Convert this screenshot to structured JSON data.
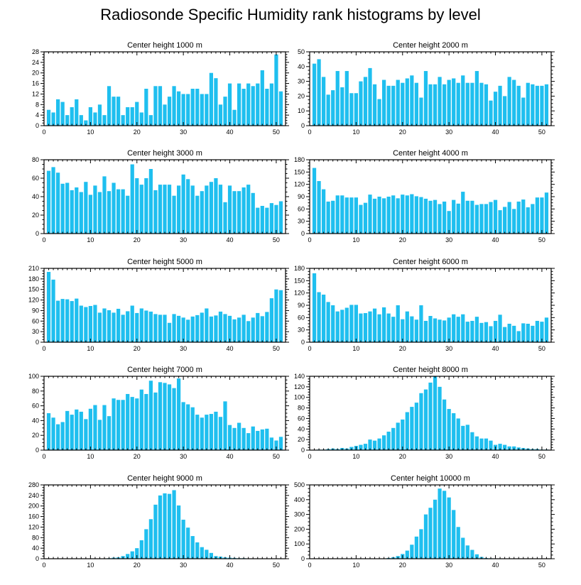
{
  "title": "Radiosonde Specific Humidity rank histograms by level",
  "colors": {
    "bar": "#1fbfef",
    "axis": "#000000",
    "background": "#ffffff"
  },
  "chart_data": [
    {
      "type": "bar",
      "title": "Center height 1000 m",
      "xlabel": "",
      "ylabel": "",
      "xlim": [
        0,
        52
      ],
      "ylim": [
        0,
        28
      ],
      "xticks": [
        0,
        10,
        20,
        30,
        40,
        50
      ],
      "yticks": [
        0,
        4,
        8,
        12,
        16,
        20,
        24,
        28
      ],
      "values": [
        6,
        5,
        10,
        9,
        4,
        7,
        10,
        4,
        2,
        7,
        5,
        8,
        4,
        15,
        11,
        11,
        4,
        7,
        7,
        9,
        5,
        14,
        4,
        15,
        15,
        8,
        11,
        15,
        13,
        12,
        12,
        14,
        14,
        12,
        12,
        20,
        18,
        8,
        11,
        16,
        6,
        16,
        14,
        16,
        15,
        16,
        21,
        14,
        16,
        27,
        13
      ]
    },
    {
      "type": "bar",
      "title": "Center height 2000 m",
      "xlabel": "",
      "ylabel": "",
      "xlim": [
        0,
        52
      ],
      "ylim": [
        0,
        50
      ],
      "xticks": [
        0,
        10,
        20,
        30,
        40,
        50
      ],
      "yticks": [
        0,
        10,
        20,
        30,
        40,
        50
      ],
      "values": [
        42,
        45,
        33,
        21,
        24,
        37,
        26,
        37,
        22,
        22,
        30,
        33,
        39,
        28,
        18,
        31,
        27,
        27,
        31,
        29,
        32,
        34,
        29,
        19,
        37,
        28,
        28,
        33,
        28,
        31,
        32,
        29,
        34,
        29,
        29,
        37,
        29,
        28,
        17,
        23,
        27,
        20,
        33,
        31,
        27,
        19,
        29,
        28,
        27,
        27,
        28
      ]
    },
    {
      "type": "bar",
      "title": "Center height 3000 m",
      "xlabel": "",
      "ylabel": "",
      "xlim": [
        0,
        52
      ],
      "ylim": [
        0,
        80
      ],
      "xticks": [
        0,
        10,
        20,
        30,
        40,
        50
      ],
      "yticks": [
        0,
        20,
        40,
        60,
        80
      ],
      "values": [
        68,
        72,
        66,
        54,
        55,
        47,
        50,
        45,
        56,
        42,
        52,
        45,
        62,
        46,
        55,
        48,
        48,
        41,
        75,
        60,
        53,
        60,
        70,
        47,
        53,
        53,
        53,
        41,
        52,
        64,
        59,
        52,
        41,
        46,
        52,
        56,
        60,
        53,
        34,
        52,
        46,
        46,
        50,
        53,
        44,
        28,
        30,
        28,
        33,
        31,
        35
      ]
    },
    {
      "type": "bar",
      "title": "Center height 4000 m",
      "xlabel": "",
      "ylabel": "",
      "xlim": [
        0,
        52
      ],
      "ylim": [
        0,
        180
      ],
      "xticks": [
        0,
        10,
        20,
        30,
        40,
        50
      ],
      "yticks": [
        0,
        30,
        60,
        90,
        120,
        150,
        180
      ],
      "values": [
        160,
        128,
        108,
        78,
        80,
        93,
        93,
        88,
        88,
        88,
        70,
        75,
        95,
        85,
        90,
        86,
        90,
        93,
        86,
        95,
        93,
        96,
        91,
        89,
        85,
        80,
        82,
        72,
        78,
        55,
        82,
        73,
        102,
        80,
        80,
        70,
        72,
        72,
        77,
        82,
        57,
        65,
        77,
        60,
        78,
        83,
        64,
        72,
        88,
        88,
        100
      ]
    },
    {
      "type": "bar",
      "title": "Center height 5000 m",
      "xlabel": "",
      "ylabel": "",
      "xlim": [
        0,
        52
      ],
      "ylim": [
        0,
        210
      ],
      "xticks": [
        0,
        10,
        20,
        30,
        40,
        50
      ],
      "yticks": [
        0,
        30,
        60,
        90,
        120,
        150,
        180,
        210
      ],
      "values": [
        200,
        178,
        118,
        123,
        122,
        117,
        124,
        104,
        100,
        103,
        106,
        84,
        96,
        91,
        84,
        95,
        78,
        88,
        104,
        83,
        96,
        90,
        87,
        80,
        78,
        78,
        55,
        80,
        75,
        70,
        64,
        73,
        77,
        84,
        96,
        73,
        76,
        87,
        80,
        75,
        65,
        70,
        78,
        60,
        70,
        83,
        74,
        86,
        125,
        150,
        148
      ]
    },
    {
      "type": "bar",
      "title": "Center height 6000 m",
      "xlabel": "",
      "ylabel": "",
      "xlim": [
        0,
        52
      ],
      "ylim": [
        0,
        180
      ],
      "xticks": [
        0,
        10,
        20,
        30,
        40,
        50
      ],
      "yticks": [
        0,
        30,
        60,
        90,
        120,
        150,
        180
      ],
      "values": [
        168,
        122,
        116,
        98,
        90,
        75,
        79,
        84,
        91,
        91,
        70,
        71,
        75,
        82,
        68,
        85,
        70,
        62,
        90,
        56,
        75,
        63,
        55,
        90,
        52,
        64,
        58,
        55,
        53,
        60,
        68,
        62,
        68,
        50,
        52,
        62,
        47,
        49,
        39,
        52,
        67,
        37,
        45,
        40,
        27,
        46,
        45,
        40,
        52,
        50,
        60
      ]
    },
    {
      "type": "bar",
      "title": "Center height 7000 m",
      "xlabel": "",
      "ylabel": "",
      "xlim": [
        0,
        52
      ],
      "ylim": [
        0,
        100
      ],
      "xticks": [
        0,
        10,
        20,
        30,
        40,
        50
      ],
      "yticks": [
        0,
        20,
        40,
        60,
        80,
        100
      ],
      "values": [
        50,
        44,
        35,
        38,
        53,
        48,
        55,
        52,
        42,
        56,
        61,
        41,
        61,
        46,
        70,
        68,
        68,
        76,
        72,
        70,
        82,
        76,
        94,
        78,
        92,
        91,
        89,
        84,
        97,
        65,
        62,
        58,
        48,
        44,
        48,
        49,
        52,
        45,
        66,
        34,
        30,
        37,
        30,
        23,
        32,
        26,
        28,
        29,
        17,
        13,
        18
      ]
    },
    {
      "type": "bar",
      "title": "Center height 8000 m",
      "xlabel": "",
      "ylabel": "",
      "xlim": [
        0,
        52
      ],
      "ylim": [
        0,
        140
      ],
      "xticks": [
        0,
        10,
        20,
        30,
        40,
        50
      ],
      "yticks": [
        0,
        20,
        40,
        60,
        80,
        100,
        120,
        140
      ],
      "values": [
        0,
        1,
        1,
        2,
        3,
        2,
        4,
        3,
        6,
        8,
        10,
        12,
        20,
        18,
        22,
        28,
        35,
        42,
        52,
        58,
        72,
        82,
        90,
        108,
        115,
        128,
        142,
        120,
        96,
        78,
        70,
        60,
        46,
        48,
        34,
        26,
        22,
        22,
        18,
        10,
        12,
        10,
        7,
        7,
        5,
        4,
        3,
        2,
        2,
        1,
        1
      ]
    },
    {
      "type": "bar",
      "title": "Center height 9000 m",
      "xlabel": "",
      "ylabel": "",
      "xlim": [
        0,
        52
      ],
      "ylim": [
        0,
        280
      ],
      "xticks": [
        0,
        10,
        20,
        30,
        40,
        50
      ],
      "yticks": [
        0,
        40,
        80,
        120,
        160,
        200,
        240,
        280
      ],
      "values": [
        0,
        0,
        0,
        0,
        0,
        0,
        0,
        0,
        0,
        0,
        0,
        0,
        0,
        2,
        4,
        5,
        10,
        18,
        28,
        40,
        70,
        112,
        150,
        205,
        240,
        248,
        246,
        260,
        202,
        148,
        118,
        86,
        62,
        44,
        34,
        22,
        10,
        8,
        5,
        4,
        3,
        2,
        2,
        1,
        1,
        1,
        1,
        1,
        0,
        0,
        0
      ]
    },
    {
      "type": "bar",
      "title": "Center height 10000 m",
      "xlabel": "",
      "ylabel": "",
      "xlim": [
        0,
        52
      ],
      "ylim": [
        0,
        500
      ],
      "xticks": [
        0,
        10,
        20,
        30,
        40,
        50
      ],
      "yticks": [
        0,
        100,
        200,
        300,
        400,
        500
      ],
      "values": [
        0,
        0,
        0,
        0,
        0,
        0,
        0,
        0,
        0,
        0,
        0,
        0,
        0,
        0,
        0,
        2,
        5,
        10,
        18,
        32,
        55,
        95,
        150,
        200,
        300,
        345,
        400,
        475,
        460,
        415,
        330,
        215,
        142,
        90,
        60,
        30,
        12,
        5,
        3,
        2,
        1,
        0,
        0,
        0,
        0,
        0,
        0,
        0,
        0,
        0,
        0
      ]
    }
  ]
}
